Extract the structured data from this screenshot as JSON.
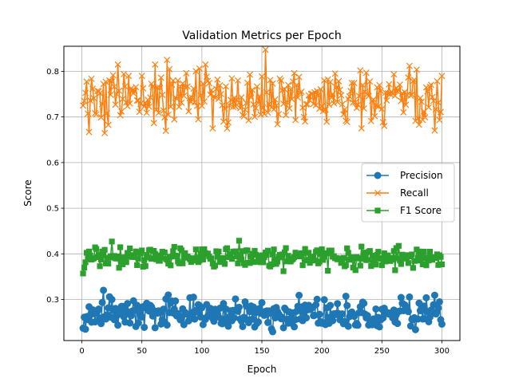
{
  "chart_data": {
    "type": "line",
    "title": "Validation Metrics per Epoch",
    "xlabel": "Epoch",
    "ylabel": "Score",
    "xlim": [
      -15,
      315
    ],
    "ylim": [
      0.21,
      0.855
    ],
    "xticks": [
      0,
      50,
      100,
      150,
      200,
      250,
      300
    ],
    "yticks": [
      0.3,
      0.4,
      0.5,
      0.6,
      0.7,
      0.8
    ],
    "grid": true,
    "legend_position": "center-right",
    "x": {
      "start": 1,
      "end": 300,
      "step": 1
    },
    "series": [
      {
        "name": "Precision",
        "color": "#1f77b4",
        "marker": "circle",
        "base": 0.268,
        "amplitude": 0.016,
        "keypoints": [
          [
            1,
            0.237
          ],
          [
            6,
            0.284
          ],
          [
            23,
            0.306
          ],
          [
            25,
            0.3
          ],
          [
            38,
            0.291
          ],
          [
            71,
            0.244
          ],
          [
            100,
            0.282
          ],
          [
            101,
            0.245
          ],
          [
            118,
            0.291
          ],
          [
            168,
            0.238
          ],
          [
            180,
            0.285
          ],
          [
            203,
            0.245
          ],
          [
            232,
            0.284
          ],
          [
            274,
            0.242
          ],
          [
            281,
            0.292
          ],
          [
            300,
            0.246
          ]
        ]
      },
      {
        "name": "Recall",
        "color": "#ff7f0e",
        "marker": "x",
        "base": 0.745,
        "amplitude": 0.03,
        "keypoints": [
          [
            1,
            0.725
          ],
          [
            6,
            0.667
          ],
          [
            30,
            0.815
          ],
          [
            50,
            0.79
          ],
          [
            61,
            0.815
          ],
          [
            71,
            0.825
          ],
          [
            73,
            0.805
          ],
          [
            103,
            0.815
          ],
          [
            118,
            0.69
          ],
          [
            130,
            0.78
          ],
          [
            185,
            0.7
          ],
          [
            233,
            0.675
          ],
          [
            273,
            0.812
          ],
          [
            281,
            0.683
          ],
          [
            300,
            0.79
          ]
        ]
      },
      {
        "name": "F1 Score",
        "color": "#2ca02c",
        "marker": "square",
        "base": 0.392,
        "amplitude": 0.011,
        "keypoints": [
          [
            1,
            0.357
          ],
          [
            2,
            0.37
          ],
          [
            25,
            0.427
          ],
          [
            40,
            0.412
          ],
          [
            100,
            0.41
          ],
          [
            168,
            0.362
          ],
          [
            205,
            0.363
          ],
          [
            226,
            0.37
          ],
          [
            300,
            0.377
          ]
        ]
      }
    ]
  }
}
